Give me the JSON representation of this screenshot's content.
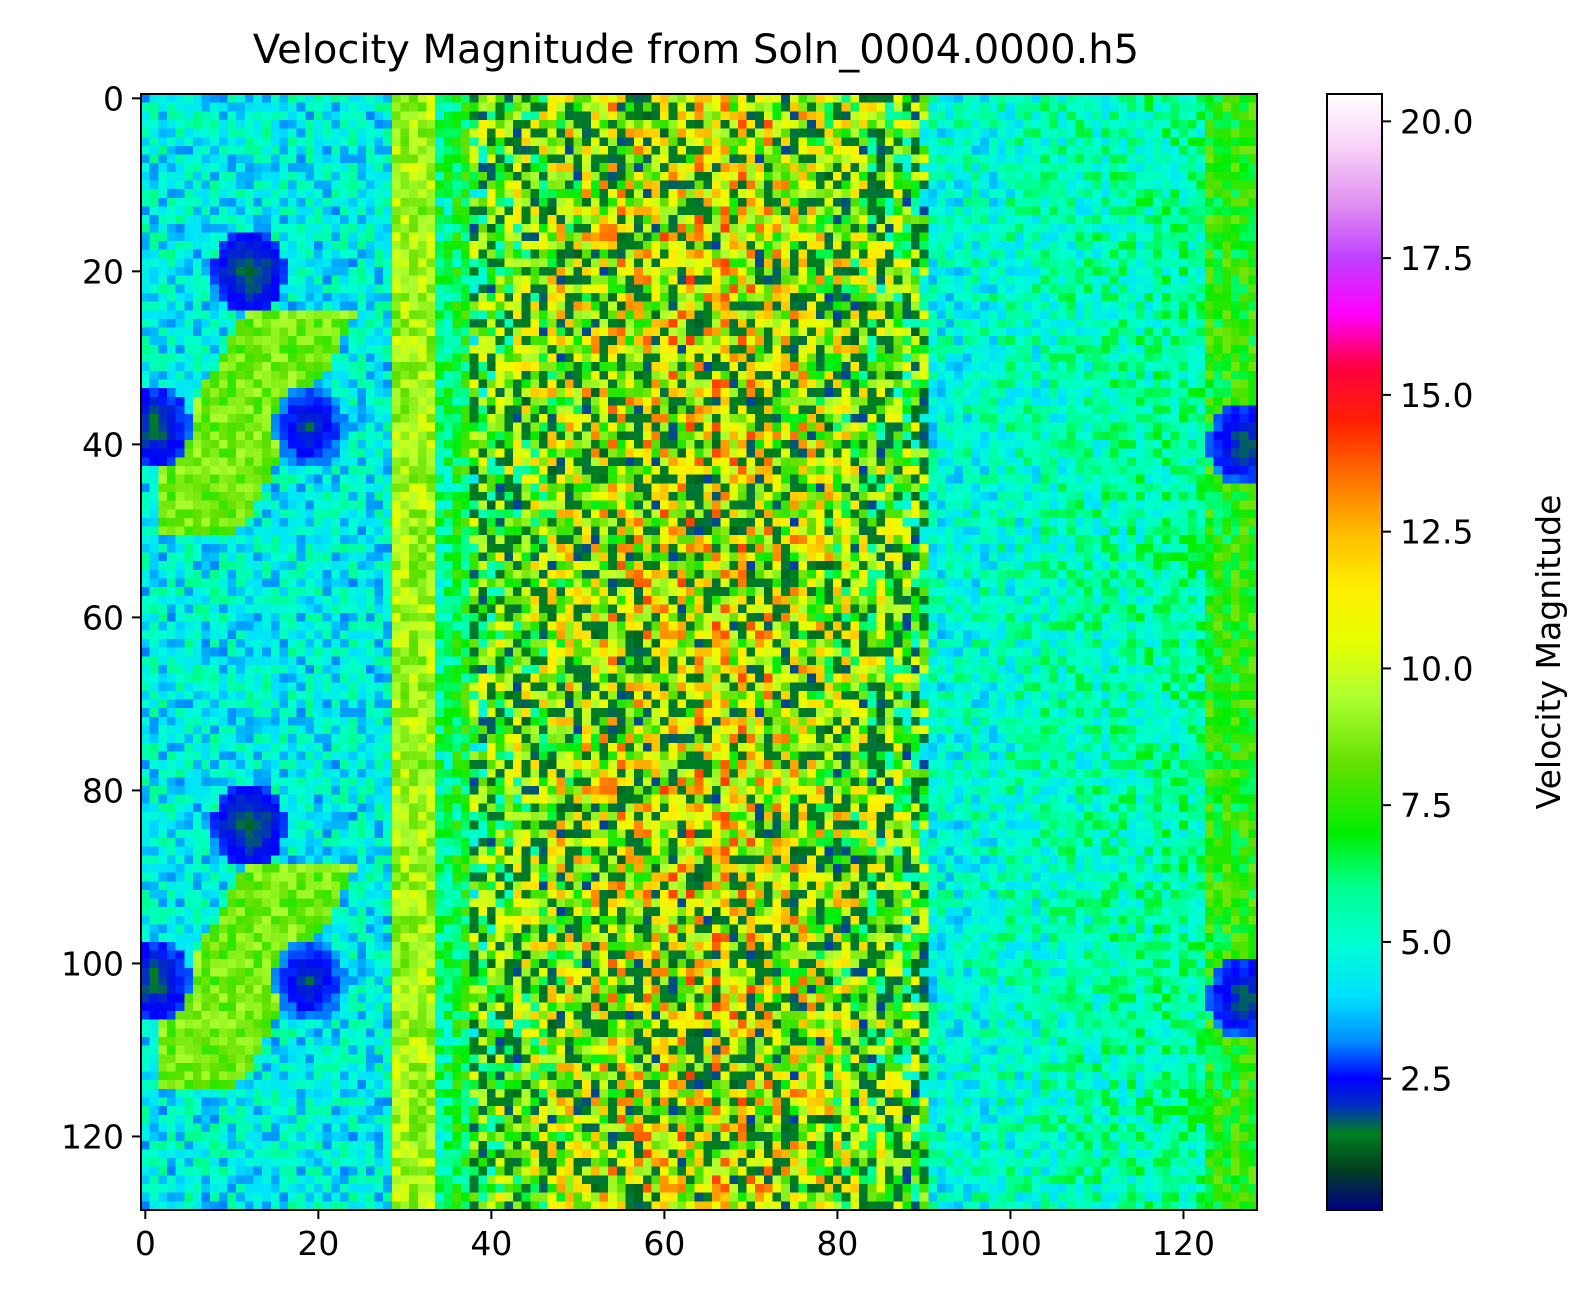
{
  "chart_data": {
    "type": "heatmap",
    "title": "Velocity Magnitude from Soln_0004.0000.h5",
    "xlabel": "",
    "ylabel": "",
    "grid": false,
    "xlim": [
      -0.5,
      128.5
    ],
    "ylim": [
      128.5,
      -0.5
    ],
    "grid_size": [
      129,
      129
    ],
    "x_ticks": [
      0,
      20,
      40,
      60,
      80,
      100,
      120
    ],
    "x_tick_labels": [
      "0",
      "20",
      "40",
      "60",
      "80",
      "100",
      "120"
    ],
    "y_ticks": [
      0,
      20,
      40,
      60,
      80,
      100,
      120
    ],
    "y_tick_labels": [
      "0",
      "20",
      "40",
      "60",
      "80",
      "100",
      "120"
    ],
    "colorbar": {
      "label": "Velocity Magnitude",
      "range": [
        0.1,
        20.5
      ],
      "ticks": [
        2.5,
        5.0,
        7.5,
        10.0,
        12.5,
        15.0,
        17.5,
        20.0
      ],
      "tick_labels": [
        "2.5",
        "5.0",
        "7.5",
        "10.0",
        "12.5",
        "15.0",
        "17.5",
        "20.0"
      ],
      "colormap": "gist_ncar",
      "colormap_stops": [
        {
          "v": 0.1,
          "color": "#000080"
        },
        {
          "v": 0.85,
          "color": "#004020"
        },
        {
          "v": 1.5,
          "color": "#008020"
        },
        {
          "v": 2.0,
          "color": "#0030c0"
        },
        {
          "v": 2.5,
          "color": "#0000ff"
        },
        {
          "v": 3.2,
          "color": "#0090ff"
        },
        {
          "v": 4.0,
          "color": "#00e0ff"
        },
        {
          "v": 5.0,
          "color": "#00ffd0"
        },
        {
          "v": 6.0,
          "color": "#00ff90"
        },
        {
          "v": 7.0,
          "color": "#00ee00"
        },
        {
          "v": 8.2,
          "color": "#60e000"
        },
        {
          "v": 9.5,
          "color": "#b0ff30"
        },
        {
          "v": 10.5,
          "color": "#e8ff00"
        },
        {
          "v": 11.5,
          "color": "#ffee00"
        },
        {
          "v": 12.5,
          "color": "#ffbb00"
        },
        {
          "v": 13.5,
          "color": "#ff7000"
        },
        {
          "v": 14.5,
          "color": "#ff2000"
        },
        {
          "v": 15.5,
          "color": "#ff0040"
        },
        {
          "v": 16.5,
          "color": "#ff00ff"
        },
        {
          "v": 17.5,
          "color": "#c040ff"
        },
        {
          "v": 18.5,
          "color": "#e090f0"
        },
        {
          "v": 19.5,
          "color": "#f8d0f8"
        },
        {
          "v": 20.5,
          "color": "#ffffff"
        }
      ]
    },
    "field_structure": {
      "domain_periodic_rows": 64,
      "left_region_mean": 4.6,
      "core_region": {
        "x_from": 38,
        "x_to": 90,
        "mean": 9.0,
        "noise": 6.0
      },
      "right_region_mean": 4.8,
      "low_pockets": [
        {
          "row": 20,
          "col": 12,
          "value": 1.0
        },
        {
          "row": 84,
          "col": 12,
          "value": 1.0
        },
        {
          "row": 38,
          "col": 1,
          "value": 1.2
        },
        {
          "row": 102,
          "col": 1,
          "value": 1.2
        },
        {
          "row": 38,
          "col": 19,
          "value": 1.5
        },
        {
          "row": 102,
          "col": 19,
          "value": 1.5
        },
        {
          "row": 40,
          "col": 127,
          "value": 1.3
        },
        {
          "row": 104,
          "col": 127,
          "value": 1.3
        }
      ],
      "high_bands": [
        {
          "row_from": 25,
          "row_to": 50,
          "col_from": 2,
          "col_to": 24,
          "value": 8.5
        },
        {
          "row_from": 89,
          "row_to": 114,
          "col_from": 2,
          "col_to": 24,
          "value": 8.5
        },
        {
          "col": 31,
          "value": 9.5
        }
      ]
    }
  }
}
